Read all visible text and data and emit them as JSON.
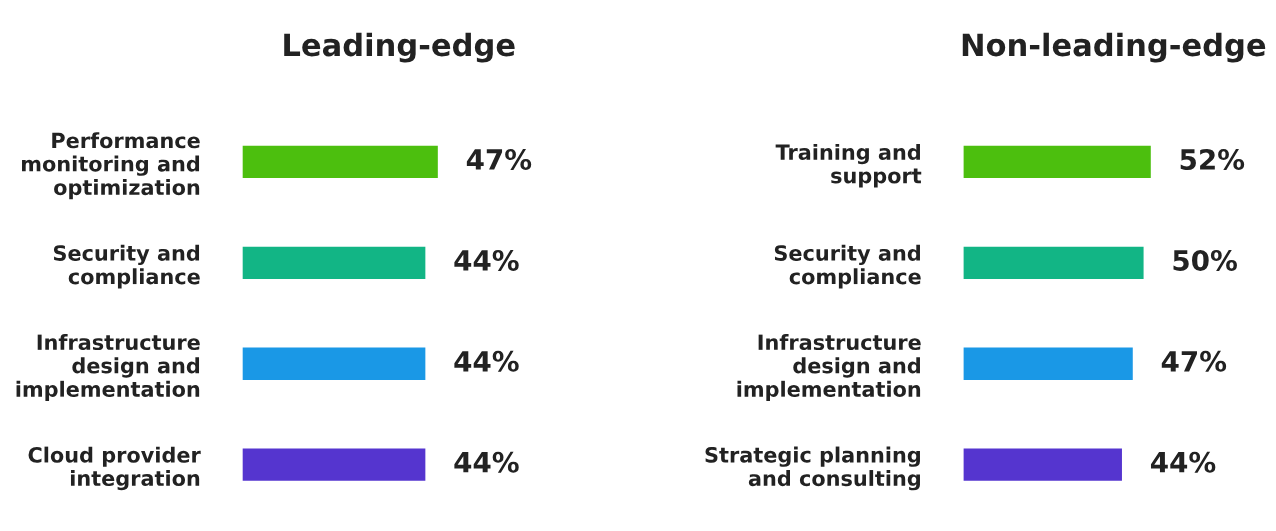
{
  "chart_data": [
    {
      "type": "bar",
      "orientation": "horizontal",
      "title": "Leading-edge",
      "categories": [
        "Performance\nmonitoring and\noptimization",
        "Security and\ncompliance",
        "Infrastructure\ndesign and\nimplementation",
        "Cloud provider\nintegration"
      ],
      "values": [
        47,
        44,
        44,
        44
      ],
      "colors": [
        "#4cbf0e",
        "#12b585",
        "#1a98e6",
        "#5535cf"
      ],
      "value_labels": [
        "47%",
        "44%",
        "44%",
        "44%"
      ],
      "tick_labels": "y",
      "grid": false,
      "legend": false
    },
    {
      "type": "bar",
      "orientation": "horizontal",
      "title": "Non-leading-edge",
      "categories": [
        "Training and\nsupport",
        "Security and\ncompliance",
        "Infrastructure\ndesign and\nimplementation",
        "Strategic planning\nand consulting"
      ],
      "values": [
        52,
        50,
        47,
        44
      ],
      "colors": [
        "#4cbf0e",
        "#12b585",
        "#1a98e6",
        "#5535cf"
      ],
      "value_labels": [
        "52%",
        "50%",
        "47%",
        "44%"
      ],
      "tick_labels": "y",
      "grid": false,
      "legend": false
    }
  ]
}
